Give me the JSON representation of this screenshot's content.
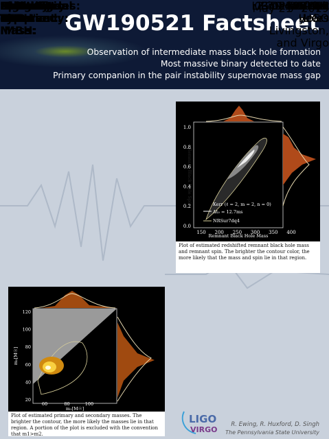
{
  "header": {
    "title": "GW190521 Factsheet",
    "subtitles": [
      "Observation of intermediate mass black hole formation",
      "Most massive binary detected to date",
      "Primary companion in the pair instability supernovae mass gap"
    ]
  },
  "facts_left": [
    {
      "label": "Detectors observed:",
      "value": "LIGO Hanford, LIGO Livingston, and Virgo"
    },
    {
      "label": "Source Type:",
      "value": "Binary Black Holes"
    },
    {
      "label": "Date:",
      "value": "May 21",
      "sup": "st",
      "after": " 2019"
    },
    {
      "label": "Merger Time:",
      "value": "03:02:29 UTC"
    },
    {
      "label": "Network SNR:",
      "value": "15"
    },
    {
      "label": "FAR:",
      "value": "1 in 4900 years"
    },
    {
      "label": "Distance:",
      "value": "2.7 – 7.7 Gpc"
    },
    {
      "label": "Redshift:",
      "value": "0.48 – 1.1"
    },
    {
      "label": "Primary Mass:",
      "value": "85 M☉"
    },
    {
      "label": "Secondary Mass:",
      "value": "66 M☉"
    }
  ],
  "facts_right": [
    {
      "label": "Mass ratio:",
      "value": "0.8"
    },
    {
      "label": "Remnant IMBH's Mass:",
      "value": "142 M☉"
    },
    {
      "label": "Spin of Remnant IMBH:",
      "value": "0.7"
    },
    {
      "label": "# GW cycles:",
      "value": "4 cycles"
    },
    {
      "label": "Peak Signal Frequency:",
      "value": "60 Hz"
    },
    {
      "label": "Signal Duration:",
      "value": "100 milliseconds"
    }
  ],
  "plot_remnant": {
    "xlabel": "Remnant Black Hole Mass",
    "ylabel": "Remnant Black Hole Spin",
    "xticks": [
      150,
      200,
      250,
      300,
      350,
      400
    ],
    "yticks": [
      "0.0",
      "0.2",
      "0.4",
      "0.6",
      "0.8",
      "1.0"
    ],
    "legend": [
      "Kerr (ℓ = 2, m = 2, n = 0)",
      "Δt₀ = 12.7ms",
      "NRSur7dq4"
    ],
    "caption": "Plot of estimated redshifted remnant black hole mass and remnant spin. The brighter the contour color, the more likely that the mass and spin lie in that region."
  },
  "plot_masses": {
    "xlabel": "m₁[M☉]",
    "ylabel": "m₂[M☉]",
    "xticks": [
      60,
      80,
      100
    ],
    "yticks": [
      20,
      40,
      60,
      80,
      100,
      120
    ],
    "caption": "Plot of estimated primary and secondary masses. The brighter the contour, the more likely the masses lie in that region. A portion of the plot is excluded with the convention that m1>m2."
  },
  "logo": [
    "LIGO",
    "VIRGO"
  ],
  "credits": [
    "R. Ewing, R. Huxford, D. Singh",
    "The Pennsylvania State University"
  ]
}
